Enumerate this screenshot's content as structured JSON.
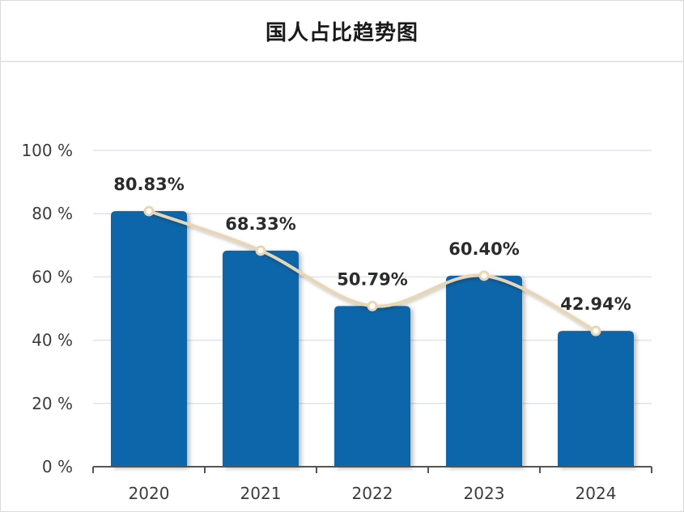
{
  "title": "国人占比趋势图",
  "chart_data": {
    "type": "bar",
    "title": "国人占比趋势图",
    "categories": [
      "2020",
      "2021",
      "2022",
      "2023",
      "2024"
    ],
    "values": [
      80.83,
      68.33,
      50.79,
      60.4,
      42.94
    ],
    "data_labels": [
      "80.83%",
      "68.33%",
      "50.79%",
      "60.40%",
      "42.94%"
    ],
    "overlay_line": true,
    "ylim": [
      0,
      100
    ],
    "y_ticks": [
      0,
      20,
      40,
      60,
      80,
      100
    ],
    "y_tick_labels": [
      "0 %",
      "20 %",
      "40 %",
      "60 %",
      "80 %",
      "100 %"
    ],
    "xlabel": "",
    "ylabel": "",
    "grid": true,
    "colors": {
      "bar": "#0a66aa",
      "line": "#e8d6b4",
      "marker_fill": "#ffffff",
      "grid": "#dde4ef",
      "axis": "#555555"
    }
  }
}
